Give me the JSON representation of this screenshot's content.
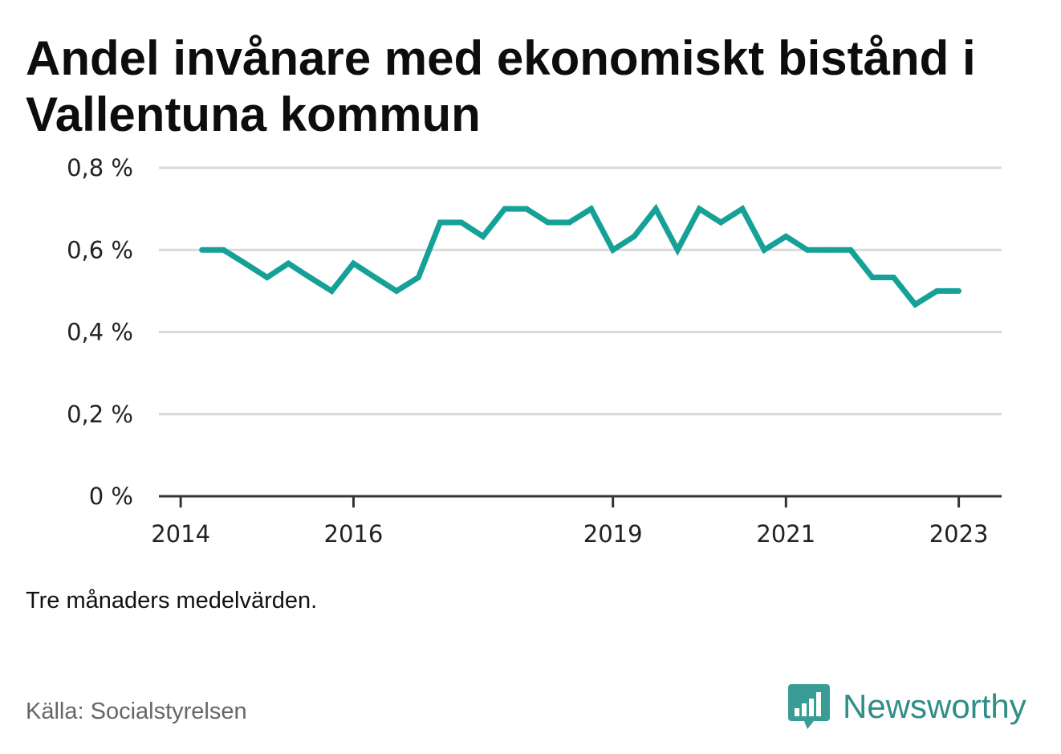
{
  "title": "Andel invånare med ekonomiskt bistånd i Vallentuna kommun",
  "note": "Tre månaders medelvärden.",
  "source": "Källa: Socialstyrelsen",
  "brand": {
    "name": "Newsworthy",
    "icon": "newsworthy-logo-icon"
  },
  "colors": {
    "line": "#16a198",
    "grid": "#d9d9d9",
    "axis": "#333333",
    "brand": "#2f8e87"
  },
  "chart_data": {
    "type": "line",
    "title": "Andel invånare med ekonomiskt bistånd i Vallentuna kommun",
    "xlabel": "",
    "ylabel": "",
    "ylim": [
      0,
      0.8
    ],
    "xlim": [
      "2013-10-01",
      "2023-07-01"
    ],
    "y_ticks": [
      {
        "value": 0,
        "label": "0 %"
      },
      {
        "value": 0.2,
        "label": "0,2 %"
      },
      {
        "value": 0.4,
        "label": "0,4 %"
      },
      {
        "value": 0.6,
        "label": "0,6 %"
      },
      {
        "value": 0.8,
        "label": "0,8 %"
      }
    ],
    "x_ticks": [
      {
        "value": "2014-01-01",
        "label": "2014"
      },
      {
        "value": "2016-01-01",
        "label": "2016"
      },
      {
        "value": "2019-01-01",
        "label": "2019"
      },
      {
        "value": "2021-01-01",
        "label": "2021"
      },
      {
        "value": "2023-01-01",
        "label": "2023"
      }
    ],
    "grid": true,
    "series": [
      {
        "x": [
          "2014-04-01",
          "2014-07-01",
          "2014-10-01",
          "2015-01-01",
          "2015-04-01",
          "2015-07-01",
          "2015-10-01",
          "2016-01-01",
          "2016-04-01",
          "2016-07-01",
          "2016-10-01",
          "2017-01-01",
          "2017-04-01",
          "2017-07-01",
          "2017-10-01",
          "2018-01-01",
          "2018-04-01",
          "2018-07-01",
          "2018-10-01",
          "2019-01-01",
          "2019-04-01",
          "2019-07-01",
          "2019-10-01",
          "2020-01-01",
          "2020-04-01",
          "2020-07-01",
          "2020-10-01",
          "2021-01-01",
          "2021-04-01",
          "2021-07-01",
          "2021-10-01",
          "2022-01-01",
          "2022-04-01",
          "2022-07-01",
          "2022-10-01",
          "2023-01-01"
        ],
        "values": [
          0.6,
          0.6,
          0.567,
          0.533,
          0.567,
          0.533,
          0.5,
          0.567,
          0.533,
          0.5,
          0.533,
          0.667,
          0.667,
          0.633,
          0.7,
          0.7,
          0.667,
          0.667,
          0.7,
          0.6,
          0.633,
          0.7,
          0.6,
          0.7,
          0.667,
          0.7,
          0.6,
          0.633,
          0.6,
          0.6,
          0.6,
          0.533,
          0.533,
          0.467,
          0.5,
          0.5
        ]
      }
    ]
  }
}
